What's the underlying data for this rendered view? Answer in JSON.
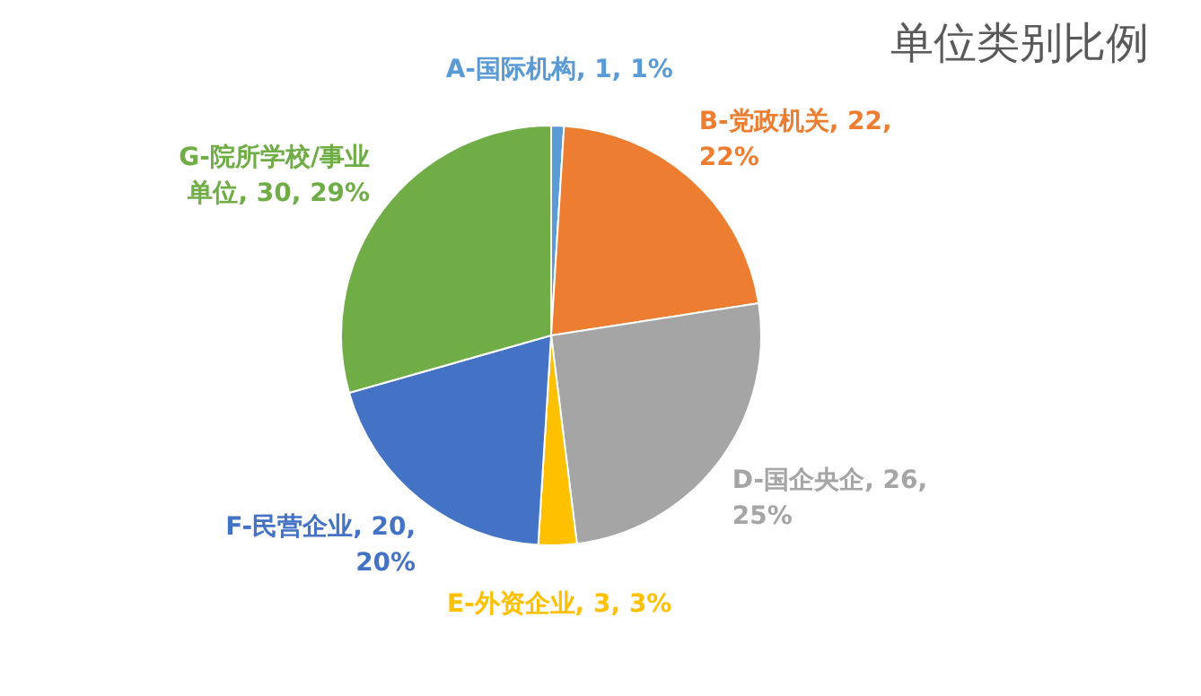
{
  "chart_data": {
    "type": "pie",
    "title": "单位类别比例",
    "categories": [
      "A-国际机构",
      "B-党政机关",
      "D-国企央企",
      "E-外资企业",
      "F-民营企业",
      "G-院所学校/事业单位"
    ],
    "values": [
      1,
      22,
      26,
      3,
      20,
      30
    ],
    "value_labels": [
      "1, 1%",
      "22, 22%",
      "26, 25%",
      "3, 3%",
      "20, 20%",
      "30, 29%"
    ],
    "colors": [
      "#5b9bd5",
      "#ed7d31",
      "#a5a5a5",
      "#ffc000",
      "#4472c4",
      "#70ad47"
    ],
    "legend": false
  }
}
